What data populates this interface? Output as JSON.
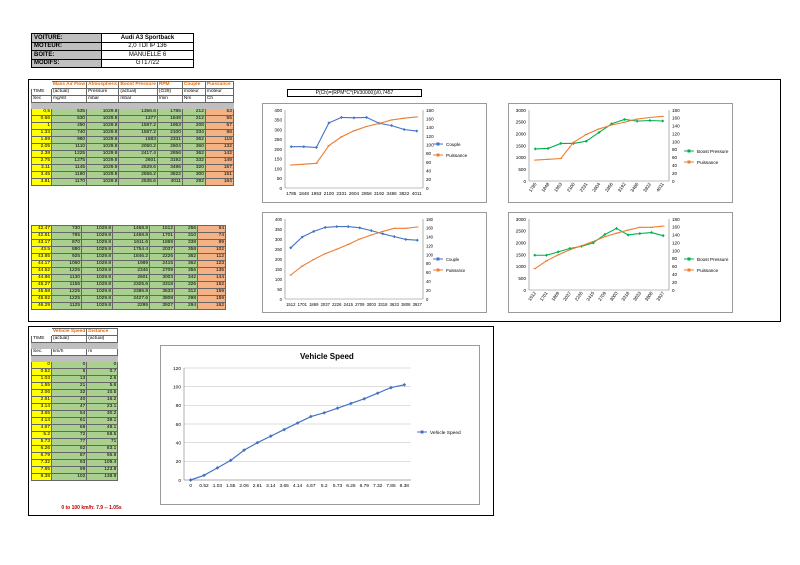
{
  "car": [
    {
      "label": "VOITURE:",
      "value": "Audi A3 Sportback"
    },
    {
      "label": "MOTEUR:",
      "value": "2,0 TDI IP 136"
    },
    {
      "label": "BOITE:",
      "value": "MANUELLE 6"
    },
    {
      "label": "MODIFS:",
      "value": "GT17/22"
    }
  ],
  "formula": "P(Ch)=(RPM*C*(Pi/30000))/0,7457",
  "engine_table": {
    "headers": [
      "",
      "Mass Air Flow",
      "Atmospheric",
      "Boost Pressure",
      "RPM",
      "Couple",
      "Puissance"
    ],
    "sub1": [
      "TIME",
      "(actual)",
      "Pressure",
      "(actual)",
      "(G28)",
      "moteur",
      "moteur"
    ],
    "sub2": [
      "Sec",
      "mg/str",
      "mbar",
      "mbar",
      "/min",
      "Nm",
      "Ch"
    ],
    "rows1": [
      [
        "0,5",
        "535",
        "1029.8",
        "1356.6",
        "1785",
        "212",
        "53"
      ],
      [
        "0.66",
        "530",
        "1029.8",
        "1377",
        "1848",
        "212",
        "55"
      ],
      [
        "1",
        "490",
        "1029.8",
        "1587.2",
        "1953",
        "208",
        "57"
      ],
      [
        "1.33",
        "740",
        "1029.8",
        "1587.2",
        "2100",
        "334",
        "98"
      ],
      [
        "1.59",
        "960",
        "1029.8",
        "1683",
        "2331",
        "362",
        "118"
      ],
      [
        "2.05",
        "1110",
        "1029.8",
        "2050.2",
        "2604",
        "360",
        "132"
      ],
      [
        "2.38",
        "1225",
        "1029.8",
        "2417.4",
        "2856",
        "362",
        "142"
      ],
      [
        "2.75",
        "1275",
        "1029.8",
        "2601",
        "3192",
        "332",
        "149"
      ],
      [
        "3.11",
        "1145",
        "1029.8",
        "2529.6",
        "3486",
        "320",
        "157"
      ],
      [
        "3.45",
        "1180",
        "1029.8",
        "2556.2",
        "3822",
        "300",
        "161"
      ],
      [
        "3.81",
        "1170",
        "1029.8",
        "2535.6",
        "4011",
        "292",
        "164"
      ]
    ],
    "rows2": [
      [
        "42.47",
        "730",
        "1029.8",
        "1468.8",
        "1512",
        "256",
        "54"
      ],
      [
        "42.81",
        "785",
        "1029.8",
        "1468.8",
        "1701",
        "310",
        "74"
      ],
      [
        "43.17",
        "870",
        "1029.8",
        "1611.6",
        "1869",
        "338",
        "89"
      ],
      [
        "43.5",
        "880",
        "1029.8",
        "1754.4",
        "2037",
        "358",
        "102"
      ],
      [
        "43.85",
        "925",
        "1029.8",
        "1846.2",
        "2226",
        "362",
        "112"
      ],
      [
        "44.17",
        "1060",
        "1029.8",
        "1989",
        "2415",
        "362",
        "123"
      ],
      [
        "44.52",
        "1225",
        "1029.8",
        "2346",
        "2709",
        "356",
        "135"
      ],
      [
        "44.86",
        "1130",
        "1029.8",
        "2601",
        "3003",
        "342",
        "144"
      ],
      [
        "45.27",
        "1155",
        "1029.8",
        "2325.6",
        "3318",
        "326",
        "152"
      ],
      [
        "45.58",
        "1225",
        "1029.8",
        "2386.8",
        "3633",
        "312",
        "159"
      ],
      [
        "45.92",
        "1225",
        "1029.8",
        "2427.6",
        "3808",
        "298",
        "159"
      ],
      [
        "46.29",
        "1125",
        "1029.8",
        "2295",
        "3927",
        "294",
        "162"
      ]
    ]
  },
  "speed_table": {
    "headers": [
      "",
      "Vehicle Speed",
      "Distance"
    ],
    "sub1": [
      "TIME",
      "(actual)",
      "(actual)"
    ],
    "sub2": [
      "Sec.",
      "km/h",
      "m"
    ],
    "rows": [
      [
        "0",
        "0",
        "0"
      ],
      [
        "0.52",
        "5",
        "0.7"
      ],
      [
        "1.03",
        "13",
        "2.6"
      ],
      [
        "1.55",
        "21",
        "5.6"
      ],
      [
        "2.06",
        "32",
        "10.5"
      ],
      [
        "2.61",
        "40",
        "16.2"
      ],
      [
        "3.14",
        "47",
        "23.1"
      ],
      [
        "3.65",
        "54",
        "30.2"
      ],
      [
        "4.14",
        "61",
        "39.1"
      ],
      [
        "4.67",
        "68",
        "49.1"
      ],
      [
        "5.2",
        "72",
        "58.5"
      ],
      [
        "5.73",
        "77",
        "71"
      ],
      [
        "6.26",
        "82",
        "83.1"
      ],
      [
        "6.79",
        "87",
        "95.9"
      ],
      [
        "7.32",
        "93",
        "109.4"
      ],
      [
        "7.85",
        "99",
        "123.8"
      ],
      [
        "8.38",
        "102",
        "138.9"
      ]
    ],
    "summary": "0 to 100 km/h: 7.9 -- 1.05s"
  },
  "chart_data": [
    {
      "type": "line",
      "categories": [
        "1785",
        "1848",
        "1953",
        "2100",
        "2331",
        "2604",
        "2856",
        "3192",
        "3486",
        "3822",
        "4011"
      ],
      "series": [
        {
          "name": "Couple",
          "axis": "left",
          "color": "#4472c4",
          "values": [
            212,
            212,
            208,
            334,
            362,
            360,
            362,
            332,
            320,
            300,
            292
          ]
        },
        {
          "name": "Puissance",
          "axis": "right",
          "color": "#ed7d31",
          "values": [
            53,
            55,
            57,
            98,
            118,
            132,
            142,
            149,
            157,
            161,
            164
          ]
        }
      ],
      "ylim_left": [
        0,
        400
      ],
      "yticks_left": [
        0,
        50,
        100,
        150,
        200,
        250,
        300,
        350,
        400
      ],
      "ylim_right": [
        0,
        180
      ],
      "yticks_right": [
        0,
        20,
        40,
        60,
        80,
        100,
        120,
        140,
        160,
        180
      ],
      "xtick_rotate": false,
      "legend": "right",
      "grid": false
    },
    {
      "type": "line",
      "categories": [
        "1785",
        "1848",
        "1953",
        "2100",
        "2331",
        "2604",
        "2856",
        "3192",
        "3486",
        "3822",
        "4011"
      ],
      "series": [
        {
          "name": "Boost Pressure",
          "axis": "left",
          "color": "#00b050",
          "values": [
            1356.6,
            1377,
            1587.2,
            1587.2,
            1683,
            2050.2,
            2417.4,
            2601,
            2529.6,
            2556.2,
            2535.6
          ]
        },
        {
          "name": "Puissance",
          "axis": "right",
          "color": "#ed7d31",
          "values": [
            53,
            55,
            57,
            98,
            118,
            132,
            142,
            149,
            157,
            161,
            164
          ]
        }
      ],
      "ylim_left": [
        0,
        3000
      ],
      "yticks_left": [
        0,
        500,
        1000,
        1500,
        2000,
        2500,
        3000
      ],
      "ylim_right": [
        0,
        180
      ],
      "yticks_right": [
        0,
        20,
        40,
        60,
        80,
        100,
        120,
        140,
        160,
        180
      ],
      "xtick_rotate": true,
      "legend": "right",
      "grid": false
    },
    {
      "type": "line",
      "categories": [
        "1512",
        "1701",
        "1869",
        "2037",
        "2226",
        "2415",
        "2709",
        "3003",
        "3318",
        "3633",
        "3808",
        "3927"
      ],
      "series": [
        {
          "name": "Couple",
          "axis": "left",
          "color": "#4472c4",
          "values": [
            256,
            310,
            338,
            358,
            362,
            362,
            356,
            342,
            326,
            312,
            298,
            294
          ]
        },
        {
          "name": "Puissance",
          "axis": "right",
          "color": "#ed7d31",
          "values": [
            54,
            74,
            89,
            102,
            112,
            123,
            135,
            144,
            152,
            159,
            159,
            162
          ]
        }
      ],
      "ylim_left": [
        0,
        400
      ],
      "yticks_left": [
        0,
        50,
        100,
        150,
        200,
        250,
        300,
        350,
        400
      ],
      "ylim_right": [
        0,
        180
      ],
      "yticks_right": [
        0,
        20,
        40,
        60,
        80,
        100,
        120,
        140,
        160,
        180
      ],
      "xtick_rotate": false,
      "legend": "right",
      "grid": false
    },
    {
      "type": "line",
      "categories": [
        "1512",
        "1701",
        "1869",
        "2037",
        "2226",
        "2415",
        "2709",
        "3003",
        "3318",
        "3633",
        "3808",
        "3927"
      ],
      "series": [
        {
          "name": "Boost Pressure",
          "axis": "left",
          "color": "#00b050",
          "values": [
            1468.8,
            1468.8,
            1611.6,
            1754.4,
            1846.2,
            1989,
            2346,
            2601,
            2325.6,
            2386.8,
            2427.6,
            2295
          ]
        },
        {
          "name": "Puissance",
          "axis": "right",
          "color": "#ed7d31",
          "values": [
            54,
            74,
            89,
            102,
            112,
            123,
            135,
            144,
            152,
            159,
            159,
            162
          ]
        }
      ],
      "ylim_left": [
        0,
        3000
      ],
      "yticks_left": [
        0,
        500,
        1000,
        1500,
        2000,
        2500,
        3000
      ],
      "ylim_right": [
        0,
        180
      ],
      "yticks_right": [
        0,
        20,
        40,
        60,
        80,
        100,
        120,
        140,
        160,
        180
      ],
      "xtick_rotate": true,
      "legend": "right",
      "grid": false
    },
    {
      "type": "line",
      "title": "Vehicle Speed",
      "categories": [
        "0",
        "0.52",
        "1.03",
        "1.55",
        "2.06",
        "2.61",
        "3.14",
        "3.65",
        "4.14",
        "4.67",
        "5.2",
        "5.73",
        "6.26",
        "6.79",
        "7.32",
        "7.85",
        "8.38"
      ],
      "series": [
        {
          "name": "Vehicle Speed",
          "axis": "left",
          "color": "#4472c4",
          "values": [
            0,
            5,
            13,
            21,
            32,
            40,
            47,
            54,
            61,
            68,
            72,
            77,
            82,
            87,
            93,
            99,
            102
          ]
        }
      ],
      "ylim_left": [
        0,
        120
      ],
      "yticks_left": [
        0,
        20,
        40,
        60,
        80,
        100,
        120
      ],
      "xtick_rotate": false,
      "legend": "right",
      "grid": true
    }
  ]
}
